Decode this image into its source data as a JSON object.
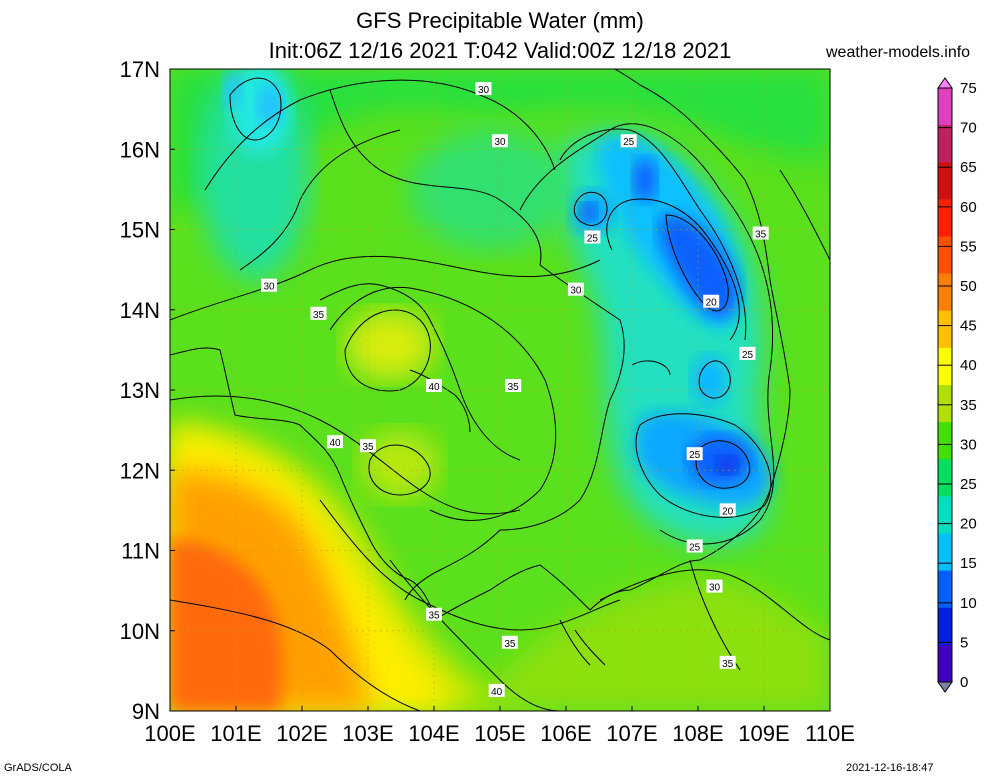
{
  "title": {
    "line1": "GFS Precipitable Water (mm)",
    "line2": "Init:06Z 12/16 2021 T:042 Valid:00Z 12/18 2021"
  },
  "site": "weather-models.info",
  "footer": {
    "credit": "GrADS/COLA",
    "timestamp": "2021-12-16-18:47"
  },
  "map": {
    "region": "Southeast Asia (Indochina)",
    "lon_range": [
      100,
      110
    ],
    "lat_range": [
      9,
      17
    ],
    "x_ticks": [
      "100E",
      "101E",
      "102E",
      "103E",
      "104E",
      "105E",
      "106E",
      "107E",
      "108E",
      "109E",
      "110E"
    ],
    "y_ticks": [
      "17N",
      "16N",
      "15N",
      "14N",
      "13N",
      "12N",
      "11N",
      "10N",
      "9N"
    ]
  },
  "colorbar": {
    "labels": [
      "75",
      "70",
      "65",
      "60",
      "55",
      "50",
      "45",
      "40",
      "35",
      "30",
      "25",
      "20",
      "15",
      "10",
      "5",
      "0"
    ],
    "colors": [
      "#ff80ff",
      "#e040c0",
      "#c02060",
      "#d01010",
      "#ff2000",
      "#ff5000",
      "#ff8000",
      "#ffc000",
      "#ffff00",
      "#b0e000",
      "#40e000",
      "#00e060",
      "#00e0c0",
      "#00c0ff",
      "#0060ff",
      "#0020e0",
      "#4000c0",
      "#8080a0"
    ]
  },
  "contour_labels": [
    {
      "text": "30",
      "lon": 104.75,
      "lat": 16.75
    },
    {
      "text": "30",
      "lon": 105.0,
      "lat": 16.1
    },
    {
      "text": "25",
      "lon": 106.95,
      "lat": 16.1
    },
    {
      "text": "25",
      "lon": 106.4,
      "lat": 14.9
    },
    {
      "text": "35",
      "lon": 108.95,
      "lat": 14.95
    },
    {
      "text": "30",
      "lon": 101.5,
      "lat": 14.3
    },
    {
      "text": "30",
      "lon": 106.15,
      "lat": 14.25
    },
    {
      "text": "20",
      "lon": 108.2,
      "lat": 14.1
    },
    {
      "text": "35",
      "lon": 102.25,
      "lat": 13.95
    },
    {
      "text": "25",
      "lon": 108.75,
      "lat": 13.45
    },
    {
      "text": "40",
      "lon": 104.0,
      "lat": 13.05
    },
    {
      "text": "35",
      "lon": 105.2,
      "lat": 13.05
    },
    {
      "text": "40",
      "lon": 102.5,
      "lat": 12.35
    },
    {
      "text": "35",
      "lon": 103.0,
      "lat": 12.3
    },
    {
      "text": "25",
      "lon": 107.95,
      "lat": 12.2
    },
    {
      "text": "20",
      "lon": 108.45,
      "lat": 11.5
    },
    {
      "text": "25",
      "lon": 107.95,
      "lat": 11.05
    },
    {
      "text": "30",
      "lon": 108.25,
      "lat": 10.55
    },
    {
      "text": "35",
      "lon": 104.0,
      "lat": 10.2
    },
    {
      "text": "35",
      "lon": 105.15,
      "lat": 9.85
    },
    {
      "text": "35",
      "lon": 108.45,
      "lat": 9.6
    },
    {
      "text": "40",
      "lon": 104.95,
      "lat": 9.25
    }
  ]
}
